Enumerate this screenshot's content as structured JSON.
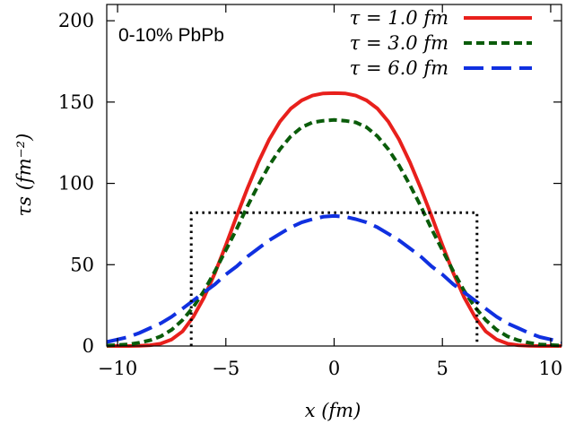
{
  "chart_data": {
    "type": "line",
    "title": "",
    "annotation": "0-10% PbPb",
    "xlabel": "x (fm)",
    "ylabel": "τs (fm⁻²)",
    "xlim": [
      -10.5,
      10.5
    ],
    "ylim": [
      0,
      210
    ],
    "xticks": [
      -10,
      -5,
      0,
      5,
      10
    ],
    "xtick_labels": [
      "−10",
      "−5",
      "0",
      "5",
      "10"
    ],
    "yticks": [
      0,
      50,
      100,
      150,
      200
    ],
    "ytick_labels": [
      "0",
      "50",
      "100",
      "150",
      "200"
    ],
    "legend_position": "top-right",
    "x": [
      -10.5,
      -10,
      -9.5,
      -9,
      -8.5,
      -8,
      -7.5,
      -7,
      -6.5,
      -6,
      -5.5,
      -5,
      -4.5,
      -4,
      -3.5,
      -3,
      -2.5,
      -2,
      -1.5,
      -1,
      -0.5,
      0,
      0.5,
      1,
      1.5,
      2,
      2.5,
      3,
      3.5,
      4,
      4.5,
      5,
      5.5,
      6,
      6.5,
      7,
      7.5,
      8,
      8.5,
      9,
      9.5,
      10,
      10.5
    ],
    "series": [
      {
        "name": "τ = 1.0 fm",
        "color": "#e8201c",
        "style": "solid",
        "values": [
          0,
          0,
          0,
          0.1,
          0.5,
          1.5,
          4,
          9,
          18,
          30,
          45,
          62,
          80,
          97,
          113,
          127,
          138,
          146,
          151,
          154,
          155.3,
          155.5,
          155.3,
          154,
          151,
          146,
          138,
          127,
          113,
          97,
          80,
          62,
          45,
          30,
          18,
          9,
          4,
          1.5,
          0.5,
          0.1,
          0,
          0,
          0
        ]
      },
      {
        "name": "τ = 3.0 fm",
        "color": "#0a5c0a",
        "style": "dashed",
        "values": [
          0.3,
          0.6,
          1,
          2,
          3.5,
          6,
          10,
          16,
          24,
          34,
          46,
          59,
          72,
          86,
          99,
          111,
          121,
          129,
          134.5,
          137.5,
          138.5,
          139,
          138.5,
          137.5,
          134.5,
          129,
          121,
          111,
          99,
          86,
          72,
          59,
          46,
          34,
          24,
          16,
          10,
          6,
          3.5,
          2,
          1,
          0.6,
          0.3
        ]
      },
      {
        "name": "τ = 6.0 fm",
        "color": "#1030e0",
        "style": "long-dash",
        "values": [
          2.5,
          4,
          5.5,
          8,
          11,
          14,
          18,
          23,
          28,
          33,
          38,
          44,
          49,
          55,
          60,
          65,
          69,
          73,
          76,
          78,
          79.5,
          80,
          79.5,
          78,
          76,
          73,
          69,
          65,
          60,
          55,
          49,
          44,
          38,
          33,
          28,
          23,
          18,
          14,
          11,
          8,
          5.5,
          4,
          2.5
        ]
      },
      {
        "name": "",
        "color": "#000000",
        "style": "dotted",
        "x": [
          -6.6,
          -6.6,
          6.6,
          6.6
        ],
        "values": [
          0,
          82,
          82,
          0
        ]
      }
    ]
  }
}
